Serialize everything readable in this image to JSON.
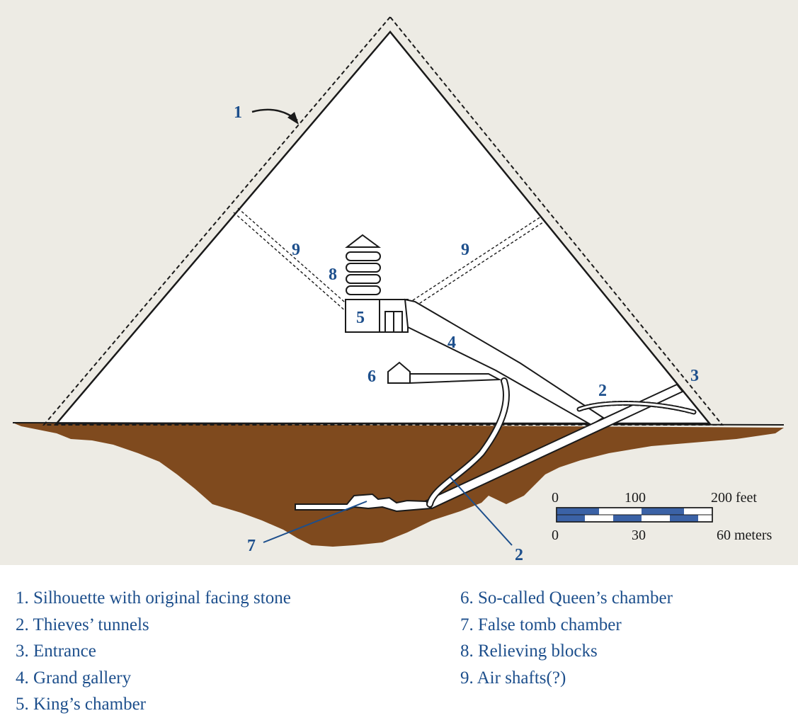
{
  "diagram": {
    "colors": {
      "background": "#edebe4",
      "pyramid": "#ffffff",
      "ground": "#7f4a1e",
      "accent": "#1d4f8c",
      "line": "#1a1a1a"
    },
    "callouts": {
      "silhouette": "1",
      "tunnel_upper": "2",
      "tunnel_lower": "2",
      "entrance": "3",
      "gallery": "4",
      "kings_chamber": "5",
      "queens_chamber": "6",
      "false_tomb": "7",
      "relieving_blocks": "8",
      "shaft_left": "9",
      "shaft_right": "9"
    },
    "scale_bar": {
      "feet_labels": [
        "0",
        "100",
        "200 feet"
      ],
      "meter_labels": [
        "0",
        "30",
        "60 meters"
      ]
    }
  },
  "legend": {
    "left": [
      "1. Silhouette with original facing stone",
      "2. Thieves’ tunnels",
      "3. Entrance",
      "4. Grand gallery",
      "5. King’s chamber"
    ],
    "right": [
      "6. So-called Queen’s chamber",
      "7. False tomb chamber",
      "8. Relieving blocks",
      "9. Air shafts(?)"
    ]
  }
}
